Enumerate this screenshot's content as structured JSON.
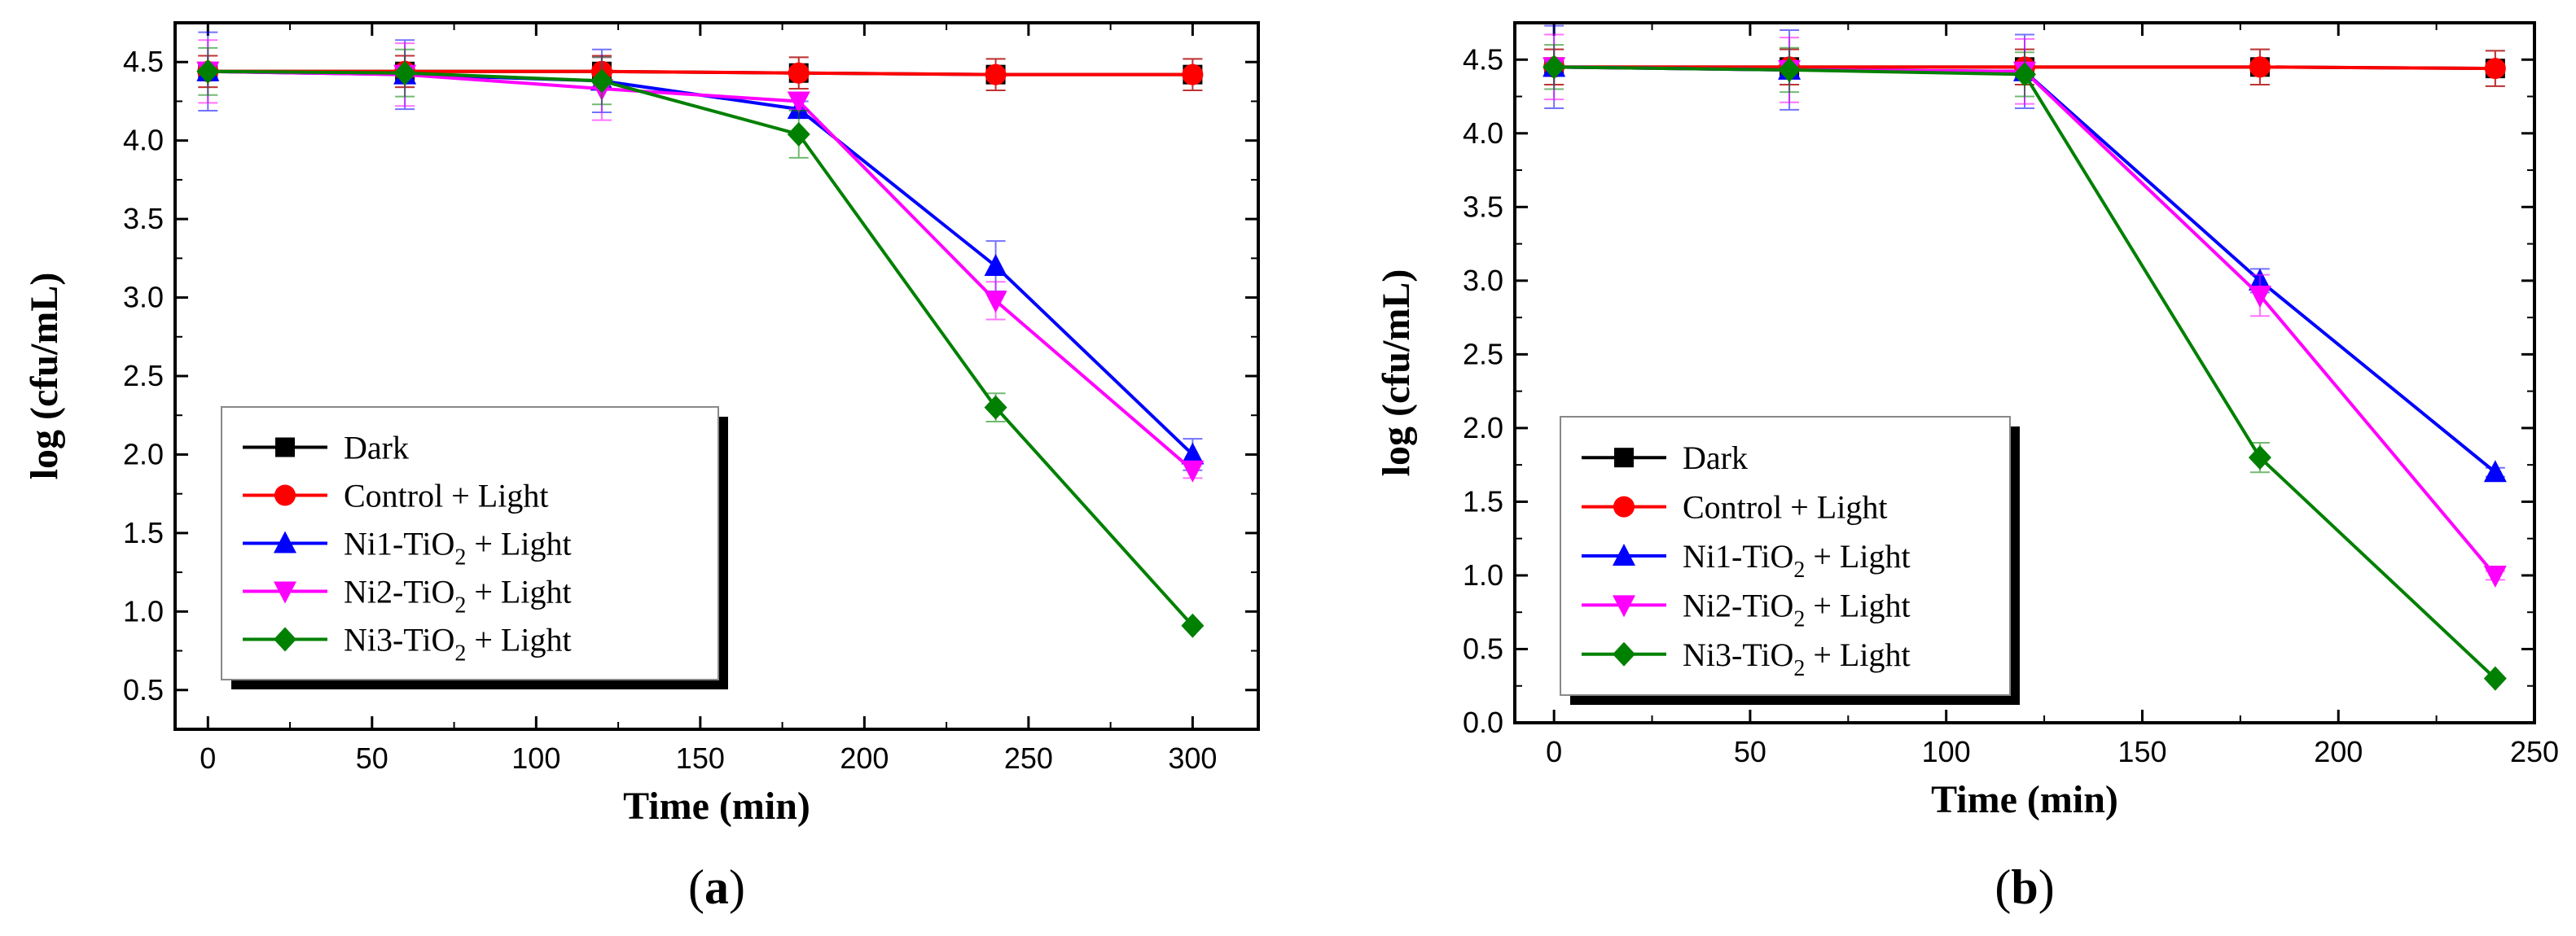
{
  "chart_data": [
    {
      "type": "line",
      "panel_label": {
        "open": "(",
        "letter": "a",
        "close": ")"
      },
      "xlabel": "Time (min)",
      "ylabel": "log (cfu/mL)",
      "xlim": [
        -10,
        320
      ],
      "ylim": [
        0.25,
        4.75
      ],
      "xticks": [
        0,
        50,
        100,
        150,
        200,
        250,
        300
      ],
      "yticks": [
        0.5,
        1.0,
        1.5,
        2.0,
        2.5,
        3.0,
        3.5,
        4.0,
        4.5
      ],
      "tick_labels_y": [
        "0.5",
        "1.0",
        "1.5",
        "2.0",
        "2.5",
        "3.0",
        "3.5",
        "4.0",
        "4.5"
      ],
      "tick_labels_x": [
        "0",
        "50",
        "100",
        "150",
        "200",
        "250",
        "300"
      ],
      "legend_position": "bottom-left",
      "series": [
        {
          "name": "Dark",
          "color": "#000000",
          "marker": "square",
          "x": [
            0,
            60,
            120,
            180,
            240,
            300
          ],
          "y": [
            4.44,
            4.44,
            4.44,
            4.43,
            4.42,
            4.42
          ],
          "err": [
            0.1,
            0.1,
            0.1,
            0.1,
            0.1,
            0.1
          ]
        },
        {
          "name": "Control + Light",
          "color": "#ff0000",
          "marker": "circle",
          "x": [
            0,
            60,
            120,
            180,
            240,
            300
          ],
          "y": [
            4.44,
            4.44,
            4.44,
            4.43,
            4.42,
            4.42
          ],
          "err": [
            0.1,
            0.1,
            0.1,
            0.1,
            0.1,
            0.1
          ]
        },
        {
          "name": "Ni1-TiO₂ + Light",
          "label_main": "Ni1-TiO",
          "label_sub": "2",
          "label_tail": " + Light",
          "color": "#0000ff",
          "marker": "triangle-up",
          "x": [
            0,
            60,
            120,
            180,
            240,
            300
          ],
          "y": [
            4.44,
            4.42,
            4.38,
            4.2,
            3.2,
            2.0
          ],
          "err": [
            0.25,
            0.22,
            0.2,
            0.05,
            0.16,
            0.1
          ]
        },
        {
          "name": "Ni2-TiO₂ + Light",
          "label_main": "Ni2-TiO",
          "label_sub": "2",
          "label_tail": " + Light",
          "color": "#ff00ff",
          "marker": "triangle-down",
          "x": [
            0,
            60,
            120,
            180,
            240,
            300
          ],
          "y": [
            4.44,
            4.42,
            4.33,
            4.25,
            2.98,
            1.9
          ],
          "err": [
            0.2,
            0.2,
            0.2,
            0.05,
            0.12,
            0.05
          ]
        },
        {
          "name": "Ni3-TiO₂ + Light",
          "label_main": "Ni3-TiO",
          "label_sub": "2",
          "label_tail": " + Light",
          "color": "#008000",
          "marker": "diamond",
          "x": [
            0,
            60,
            120,
            180,
            240,
            300
          ],
          "y": [
            4.44,
            4.43,
            4.38,
            4.04,
            2.3,
            0.91
          ],
          "err": [
            0.15,
            0.15,
            0.15,
            0.15,
            0.09,
            0.0
          ]
        }
      ]
    },
    {
      "type": "line",
      "panel_label": {
        "open": "(",
        "letter": "b",
        "close": ")"
      },
      "xlabel": "Time (min)",
      "ylabel": "log (cfu/mL)",
      "xlim": [
        -10,
        250
      ],
      "ylim": [
        0.0,
        4.75
      ],
      "xticks": [
        0,
        50,
        100,
        150,
        200,
        250
      ],
      "yticks": [
        0.0,
        0.5,
        1.0,
        1.5,
        2.0,
        2.5,
        3.0,
        3.5,
        4.0,
        4.5
      ],
      "tick_labels_y": [
        "0.0",
        "0.5",
        "1.0",
        "1.5",
        "2.0",
        "2.5",
        "3.0",
        "3.5",
        "4.0",
        "4.5"
      ],
      "tick_labels_x": [
        "0",
        "50",
        "100",
        "150",
        "200",
        "250"
      ],
      "legend_position": "bottom-left",
      "series": [
        {
          "name": "Dark",
          "color": "#000000",
          "marker": "square",
          "x": [
            0,
            60,
            120,
            180,
            240
          ],
          "y": [
            4.45,
            4.45,
            4.45,
            4.45,
            4.44
          ],
          "err": [
            0.12,
            0.12,
            0.12,
            0.12,
            0.12
          ]
        },
        {
          "name": "Control + Light",
          "color": "#ff0000",
          "marker": "circle",
          "x": [
            0,
            60,
            120,
            180,
            240
          ],
          "y": [
            4.45,
            4.45,
            4.45,
            4.45,
            4.44
          ],
          "err": [
            0.12,
            0.12,
            0.12,
            0.12,
            0.12
          ]
        },
        {
          "name": "Ni1-TiO₂ + Light",
          "label_main": "Ni1-TiO",
          "label_sub": "2",
          "label_tail": " + Light",
          "color": "#0000ff",
          "marker": "triangle-up",
          "x": [
            0,
            60,
            120,
            180,
            240
          ],
          "y": [
            4.45,
            4.43,
            4.42,
            3.0,
            1.7
          ],
          "err": [
            0.28,
            0.27,
            0.25,
            0.08,
            0.03
          ]
        },
        {
          "name": "Ni2-TiO₂ + Light",
          "label_main": "Ni2-TiO",
          "label_sub": "2",
          "label_tail": " + Light",
          "color": "#ff00ff",
          "marker": "triangle-down",
          "x": [
            0,
            60,
            120,
            180,
            240
          ],
          "y": [
            4.45,
            4.43,
            4.42,
            2.9,
            1.0
          ],
          "err": [
            0.22,
            0.22,
            0.22,
            0.14,
            0.03
          ]
        },
        {
          "name": "Ni3-TiO₂ + Light",
          "label_main": "Ni3-TiO",
          "label_sub": "2",
          "label_tail": " + Light",
          "color": "#008000",
          "marker": "diamond",
          "x": [
            0,
            60,
            120,
            180,
            240
          ],
          "y": [
            4.45,
            4.43,
            4.4,
            1.8,
            0.3
          ],
          "err": [
            0.15,
            0.15,
            0.15,
            0.1,
            0.0
          ]
        }
      ]
    }
  ]
}
